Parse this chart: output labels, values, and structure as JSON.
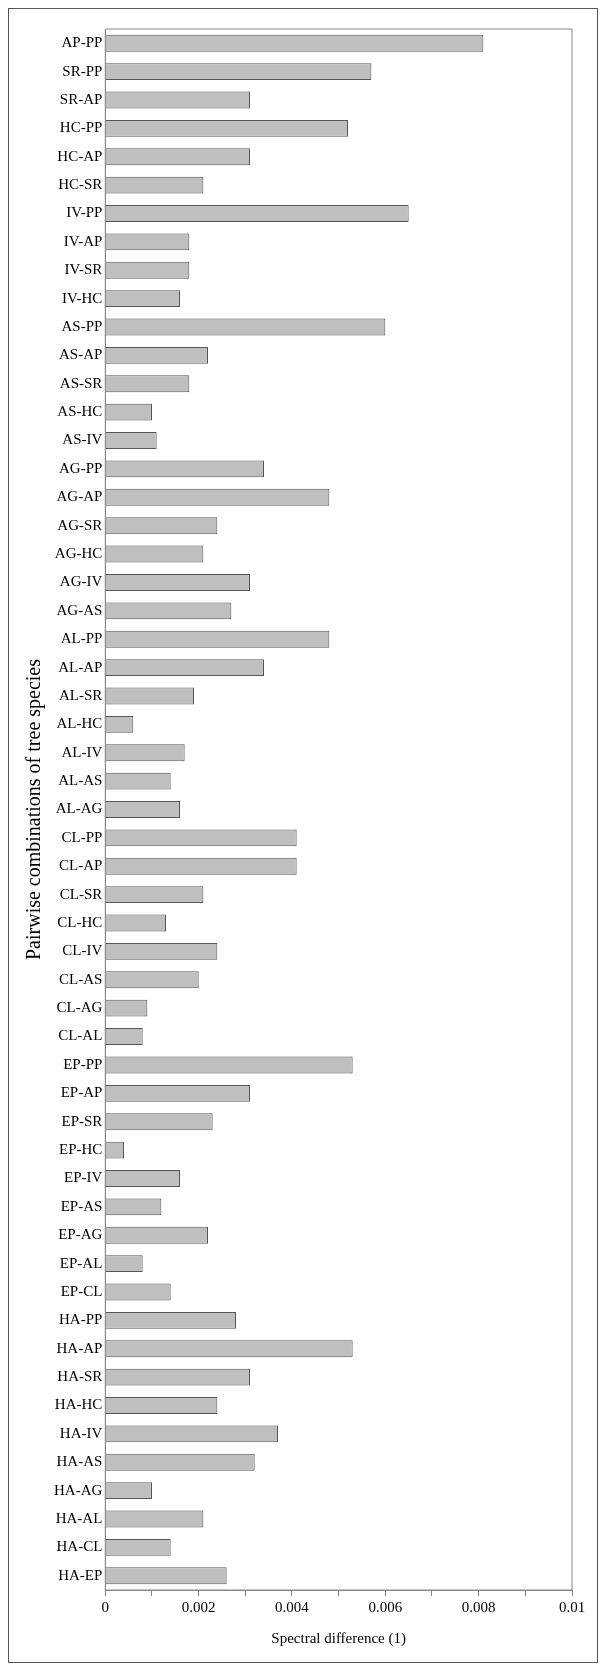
{
  "chart_data": {
    "type": "bar",
    "orientation": "horizontal",
    "xlabel": "Spectral difference (1)",
    "ylabel": "Pairwise combinations of tree species",
    "categories": [
      "AP-PP",
      "SR-PP",
      "SR-AP",
      "HC-PP",
      "HC-AP",
      "HC-SR",
      "IV-PP",
      "IV-AP",
      "IV-SR",
      "IV-HC",
      "AS-PP",
      "AS-AP",
      "AS-SR",
      "AS-HC",
      "AS-IV",
      "AG-PP",
      "AG-AP",
      "AG-SR",
      "AG-HC",
      "AG-IV",
      "AG-AS",
      "AL-PP",
      "AL-AP",
      "AL-SR",
      "AL-HC",
      "AL-IV",
      "AL-AS",
      "AL-AG",
      "CL-PP",
      "CL-AP",
      "CL-SR",
      "CL-HC",
      "CL-IV",
      "CL-AS",
      "CL-AG",
      "CL-AL",
      "EP-PP",
      "EP-AP",
      "EP-SR",
      "EP-HC",
      "EP-IV",
      "EP-AS",
      "EP-AG",
      "EP-AL",
      "EP-CL",
      "HA-PP",
      "HA-AP",
      "HA-SR",
      "HA-HC",
      "HA-IV",
      "HA-AS",
      "HA-AG",
      "HA-AL",
      "HA-CL",
      "HA-EP"
    ],
    "values": [
      0.0081,
      0.0057,
      0.0031,
      0.0052,
      0.0031,
      0.0021,
      0.0065,
      0.0018,
      0.0018,
      0.0016,
      0.006,
      0.0022,
      0.0018,
      0.001,
      0.0011,
      0.0034,
      0.0048,
      0.0024,
      0.0021,
      0.0031,
      0.0027,
      0.0048,
      0.0034,
      0.0019,
      0.0006,
      0.0017,
      0.0014,
      0.0016,
      0.0041,
      0.0041,
      0.0021,
      0.0013,
      0.0024,
      0.002,
      0.0009,
      0.0008,
      0.0053,
      0.0031,
      0.0023,
      0.0004,
      0.0016,
      0.0012,
      0.0022,
      0.0008,
      0.0014,
      0.0028,
      0.0053,
      0.0031,
      0.0024,
      0.0037,
      0.0032,
      0.001,
      0.0021,
      0.0014,
      0.0026
    ],
    "color": "#bfbfbf",
    "xlim": [
      0,
      0.01
    ],
    "xticks": [
      0,
      {
        "value": 0.001,
        "label": null
      },
      0.002,
      {
        "value": 0.003,
        "label": null
      },
      0.004,
      {
        "value": 0.005,
        "label": null
      },
      0.006,
      {
        "value": 0.007,
        "label": null
      },
      0.008,
      {
        "value": 0.009,
        "label": null
      },
      0.01
    ],
    "grid": false,
    "legend": false
  }
}
